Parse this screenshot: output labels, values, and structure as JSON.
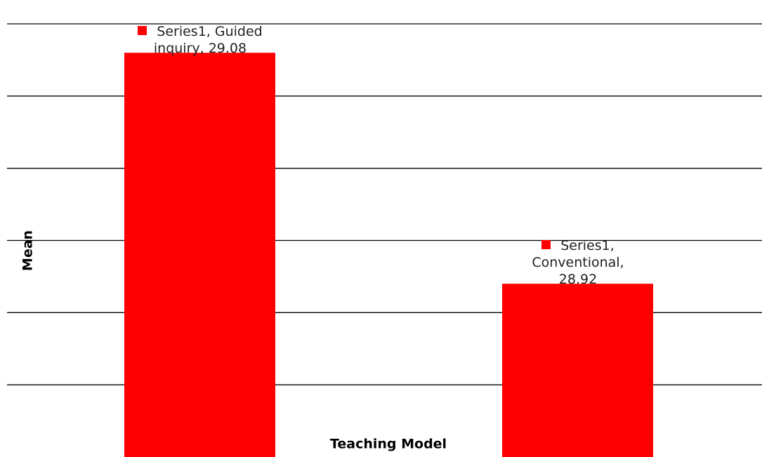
{
  "chart_data": {
    "type": "bar",
    "series": [
      {
        "name": "Series1",
        "color": "#ff0000",
        "values": [
          29.08,
          28.92
        ],
        "value_labels": [
          "Series1, Guided inquiry, 29.08",
          "Series1, Conventional, 28.92"
        ]
      }
    ],
    "categories": [
      "Guided inquiry",
      "Conventional"
    ],
    "x_label": "Teaching Model",
    "y_label": "Mean",
    "ylim": [
      28.8,
      29.1
    ],
    "yticks": [
      28.85,
      28.9,
      28.95,
      29.0,
      29.05,
      29.1
    ],
    "grid": true
  }
}
